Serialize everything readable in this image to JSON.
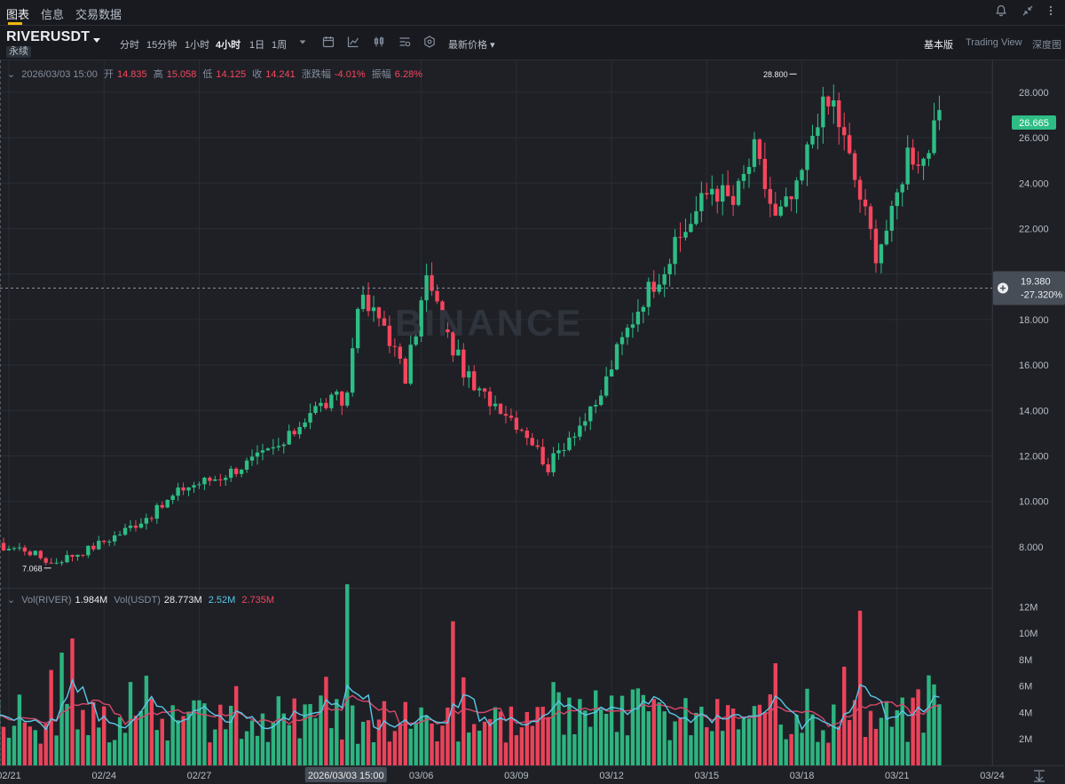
{
  "nav": {
    "tabs": [
      "图表",
      "信息",
      "交易数据"
    ],
    "active_tab": "图表"
  },
  "symbol": {
    "name": "RIVERUSDT",
    "badge": "永续"
  },
  "intervals": [
    "分时",
    "15分钟",
    "1小时",
    "4小时",
    "1日",
    "1周"
  ],
  "active_interval": "4小时",
  "price_type": "最新价格",
  "views": [
    "基本版",
    "Trading View",
    "深度图"
  ],
  "active_view": "基本版",
  "ohlc": {
    "date": "2026/03/03 15:00",
    "open_label": "开",
    "open": "14.835",
    "high_label": "高",
    "high": "15.058",
    "low_label": "低",
    "low": "14.125",
    "close_label": "收",
    "close": "14.241",
    "change_label": "涨跌幅",
    "change": "-4.01%",
    "amplitude_label": "振幅",
    "amplitude": "6.28%"
  },
  "volume_legend": {
    "vol_base_label": "Vol(RIVER)",
    "vol_base": "1.984M",
    "vol_quote_label": "Vol(USDT)",
    "vol_quote": "28.773M",
    "ma1": "2.52M",
    "ma2": "2.735M"
  },
  "watermark": "BINANCE",
  "colors": {
    "up": "#2ebd85",
    "down": "#f6465d",
    "background": "#1e2026",
    "ma_fast": "#5ac8e8",
    "ma_slow": "#d9476a"
  },
  "chart_data": {
    "type": "candlestick",
    "title": "RIVERUSDT",
    "interval": "4h",
    "y_ticks": [
      8,
      10,
      12,
      14,
      16,
      18,
      20,
      22,
      24,
      26,
      28
    ],
    "y_tick_labels": [
      "8.000",
      "10.000",
      "12.000",
      "14.000",
      "16.000",
      "18.000",
      "22.000",
      "24.000",
      "26.000",
      "28.000"
    ],
    "ylim": [
      6.2,
      29.4
    ],
    "x_ticks": [
      "02/21",
      "02/24",
      "02/27",
      "2026/03/03 15:00",
      "03/06",
      "03/09",
      "03/12",
      "03/15",
      "03/18",
      "03/21",
      "03/24"
    ],
    "x_range_days": [
      "2026-02-21",
      "2026-03-24"
    ],
    "last_price": "26.665",
    "crosshair": {
      "time": "2026/03/03 15:00",
      "price": "19.380",
      "pct": "-27.320%"
    },
    "annotations": [
      {
        "label": "28.800",
        "price": 28.8,
        "time": "2026-03-17 20:00"
      },
      {
        "label": "7.068",
        "price": 7.068,
        "time": "2026-02-22 08:00"
      }
    ],
    "anchors_time_price": [
      [
        "2026-02-20 00:00",
        8.1
      ],
      [
        "2026-02-21 12:00",
        7.9
      ],
      [
        "2026-02-22 08:00",
        7.3
      ],
      [
        "2026-02-23 12:00",
        7.9
      ],
      [
        "2026-02-24 12:00",
        8.6
      ],
      [
        "2026-02-25 16:00",
        9.6
      ],
      [
        "2026-02-26 12:00",
        10.6
      ],
      [
        "2026-02-27 16:00",
        11.1
      ],
      [
        "2026-02-28 20:00",
        11.9
      ],
      [
        "2026-03-01 16:00",
        12.5
      ],
      [
        "2026-03-02 12:00",
        14.0
      ],
      [
        "2026-03-03 08:00",
        14.5
      ],
      [
        "2026-03-03 15:00",
        14.24
      ],
      [
        "2026-03-04 00:00",
        18.9
      ],
      [
        "2026-03-04 20:00",
        17.8
      ],
      [
        "2026-03-05 12:00",
        15.4
      ],
      [
        "2026-03-06 04:00",
        19.8
      ],
      [
        "2026-03-06 20:00",
        17.2
      ],
      [
        "2026-03-07 16:00",
        14.9
      ],
      [
        "2026-03-08 12:00",
        14.2
      ],
      [
        "2026-03-09 08:00",
        13.0
      ],
      [
        "2026-03-10 00:00",
        11.5
      ],
      [
        "2026-03-10 16:00",
        12.9
      ],
      [
        "2026-03-11 12:00",
        14.1
      ],
      [
        "2026-03-12 04:00",
        16.6
      ],
      [
        "2026-03-13 00:00",
        19.0
      ],
      [
        "2026-03-13 20:00",
        20.7
      ],
      [
        "2026-03-14 12:00",
        22.4
      ],
      [
        "2026-03-15 04:00",
        23.9
      ],
      [
        "2026-03-15 20:00",
        23.1
      ],
      [
        "2026-03-16 12:00",
        25.4
      ],
      [
        "2026-03-17 04:00",
        22.4
      ],
      [
        "2026-03-17 20:00",
        23.6
      ],
      [
        "2026-03-18 12:00",
        27.1
      ],
      [
        "2026-03-19 00:00",
        27.5
      ],
      [
        "2026-03-19 16:00",
        24.2
      ],
      [
        "2026-03-20 08:00",
        21.0
      ],
      [
        "2026-03-20 20:00",
        22.5
      ],
      [
        "2026-03-21 08:00",
        25.4
      ],
      [
        "2026-03-21 20:00",
        25.1
      ],
      [
        "2026-03-22 08:00",
        26.67
      ]
    ],
    "volume_axis": {
      "ticks": [
        "2M",
        "4M",
        "6M",
        "8M",
        "10M",
        "12M"
      ],
      "ylim": [
        0,
        13.3
      ]
    },
    "volume_spikes_M": [
      [
        "2026-02-23 00:00",
        9.6
      ],
      [
        "2026-03-03 15:00",
        13.7
      ],
      [
        "2026-03-07 00:00",
        10.9
      ],
      [
        "2026-03-19 20:00",
        11.7
      ]
    ]
  }
}
